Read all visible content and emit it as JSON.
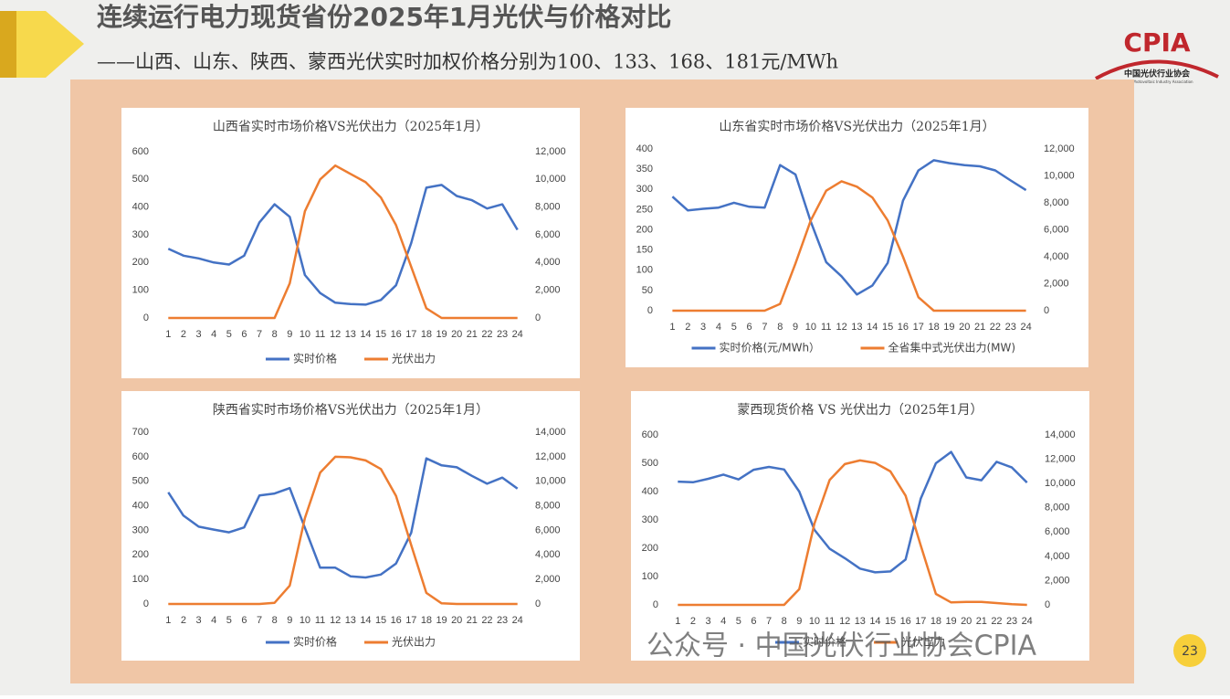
{
  "header": {
    "title": "连续运行电力现货省份2025年1月光伏与价格对比",
    "subtitle": "——山西、山东、陕西、蒙西光伏实时加权价格分别为100、133、168、181元/MWh"
  },
  "logo": {
    "name": "CPIA",
    "cn": "中国光伏行业协会",
    "en": "China Photovoltaic Industry Association"
  },
  "watermark": "公众号 · 中国光伏行业协会CPIA",
  "page_number": "23",
  "chart_data": [
    {
      "type": "line",
      "title": "山西省实时市场价格VS光伏出力（2025年1月）",
      "categories": [
        "1",
        "2",
        "3",
        "4",
        "5",
        "6",
        "7",
        "8",
        "9",
        "10",
        "11",
        "12",
        "13",
        "14",
        "15",
        "16",
        "17",
        "18",
        "19",
        "20",
        "21",
        "22",
        "23",
        "24"
      ],
      "ylim": [
        0,
        600
      ],
      "yticks": [
        0,
        100,
        200,
        300,
        400,
        500,
        600
      ],
      "y2lim": [
        0,
        12000
      ],
      "y2ticks": [
        0,
        {
          "value": 2000,
          "label": "2,000"
        },
        {
          "value": 4000,
          "label": "4,000"
        },
        {
          "value": 6000,
          "label": "6,000"
        },
        {
          "value": 8000,
          "label": "8,000"
        },
        {
          "value": 10000,
          "label": "10,000"
        },
        {
          "value": 12000,
          "label": "12,000"
        }
      ],
      "series": [
        {
          "name": "实时价格",
          "color": "#4472c4",
          "values": [
            250,
            225,
            215,
            200,
            193,
            225,
            345,
            410,
            365,
            155,
            90,
            55,
            50,
            48,
            65,
            118,
            270,
            470,
            480,
            440,
            425,
            395,
            410,
            318
          ]
        },
        {
          "name": "光伏出力",
          "color": "#ed7d31",
          "axis": "y2",
          "values": [
            0,
            0,
            0,
            0,
            0,
            0,
            0,
            0,
            2500,
            7700,
            10000,
            11000,
            10400,
            9800,
            8700,
            6700,
            3700,
            700,
            0,
            0,
            0,
            0,
            0,
            0
          ]
        }
      ]
    },
    {
      "type": "line",
      "title": "山东省实时市场价格VS光伏出力（2025年1月）",
      "categories": [
        "1",
        "2",
        "3",
        "4",
        "5",
        "6",
        "7",
        "8",
        "9",
        "10",
        "11",
        "12",
        "13",
        "14",
        "15",
        "16",
        "17",
        "18",
        "19",
        "20",
        "21",
        "22",
        "23",
        "24"
      ],
      "ylim": [
        0,
        400
      ],
      "yticks": [
        0,
        50,
        100,
        150,
        200,
        250,
        300,
        350,
        400
      ],
      "y2lim": [
        0,
        12000
      ],
      "y2ticks": [
        0,
        {
          "value": 2000,
          "label": "2,000"
        },
        {
          "value": 4000,
          "label": "4,000"
        },
        {
          "value": 6000,
          "label": "6,000"
        },
        {
          "value": 8000,
          "label": "8,000"
        },
        {
          "value": 10000,
          "label": "10,000"
        },
        {
          "value": 12000,
          "label": "12,000"
        }
      ],
      "series": [
        {
          "name": "实时价格(元/MWh）",
          "color": "#4472c4",
          "values": [
            282,
            248,
            252,
            255,
            267,
            257,
            255,
            360,
            337,
            220,
            120,
            85,
            40,
            62,
            118,
            272,
            347,
            372,
            365,
            360,
            357,
            347,
            322,
            298
          ]
        },
        {
          "name": "全省集中式光伏出力(MW)",
          "color": "#ed7d31",
          "axis": "y2",
          "values": [
            0,
            0,
            0,
            0,
            0,
            0,
            0,
            500,
            3500,
            6700,
            8900,
            9600,
            9200,
            8400,
            6700,
            4000,
            1000,
            0,
            0,
            0,
            0,
            0,
            0,
            0
          ]
        }
      ]
    },
    {
      "type": "line",
      "title": "陕西省实时市场价格VS光伏出力（2025年1月）",
      "categories": [
        "1",
        "2",
        "3",
        "4",
        "5",
        "6",
        "7",
        "8",
        "9",
        "10",
        "11",
        "12",
        "13",
        "14",
        "15",
        "16",
        "17",
        "18",
        "19",
        "20",
        "21",
        "22",
        "23",
        "24"
      ],
      "ylim": [
        0,
        700
      ],
      "yticks": [
        0,
        100,
        200,
        300,
        400,
        500,
        600,
        700
      ],
      "y2lim": [
        0,
        14000
      ],
      "y2ticks": [
        0,
        {
          "value": 2000,
          "label": "2,000"
        },
        {
          "value": 4000,
          "label": "4,000"
        },
        {
          "value": 6000,
          "label": "6,000"
        },
        {
          "value": 8000,
          "label": "8,000"
        },
        {
          "value": 10000,
          "label": "10,000"
        },
        {
          "value": 12000,
          "label": "12,000"
        },
        {
          "value": 14000,
          "label": "14,000"
        }
      ],
      "series": [
        {
          "name": "实时价格",
          "color": "#4472c4",
          "values": [
            455,
            360,
            315,
            303,
            292,
            312,
            442,
            450,
            472,
            310,
            148,
            148,
            113,
            108,
            120,
            165,
            290,
            593,
            565,
            557,
            522,
            490,
            515,
            470
          ]
        },
        {
          "name": "光伏出力",
          "color": "#ed7d31",
          "axis": "y2",
          "values": [
            0,
            0,
            0,
            0,
            0,
            0,
            0,
            100,
            1500,
            7000,
            10700,
            12000,
            11950,
            11700,
            11000,
            8800,
            4800,
            900,
            50,
            0,
            0,
            0,
            0,
            0
          ]
        }
      ]
    },
    {
      "type": "line",
      "title": "蒙西现货价格 VS 光伏出力（2025年1月）",
      "categories": [
        "1",
        "2",
        "3",
        "4",
        "5",
        "6",
        "7",
        "8",
        "9",
        "10",
        "11",
        "12",
        "13",
        "14",
        "15",
        "16",
        "17",
        "18",
        "19",
        "20",
        "21",
        "22",
        "23",
        "24"
      ],
      "ylim": [
        0,
        600
      ],
      "yticks": [
        0,
        100,
        200,
        300,
        400,
        500,
        600
      ],
      "y2lim": [
        0,
        14000
      ],
      "y2ticks": [
        0,
        {
          "value": 2000,
          "label": "2,000"
        },
        {
          "value": 4000,
          "label": "4,000"
        },
        {
          "value": 6000,
          "label": "6,000"
        },
        {
          "value": 8000,
          "label": "8,000"
        },
        {
          "value": 10000,
          "label": "10,000"
        },
        {
          "value": 12000,
          "label": "12,000"
        },
        {
          "value": 14000,
          "label": "14,000"
        }
      ],
      "series": [
        {
          "name": "实时价格",
          "color": "#4472c4",
          "values": [
            435,
            433,
            445,
            460,
            443,
            477,
            487,
            478,
            400,
            265,
            198,
            165,
            128,
            115,
            118,
            160,
            375,
            500,
            540,
            450,
            440,
            505,
            485,
            432
          ]
        },
        {
          "name": "光伏出力",
          "color": "#ed7d31",
          "axis": "y2",
          "values": [
            0,
            0,
            0,
            0,
            0,
            0,
            0,
            0,
            1300,
            6700,
            10300,
            11600,
            11900,
            11700,
            11000,
            9000,
            4900,
            900,
            200,
            250,
            250,
            150,
            50,
            0
          ]
        }
      ]
    }
  ]
}
